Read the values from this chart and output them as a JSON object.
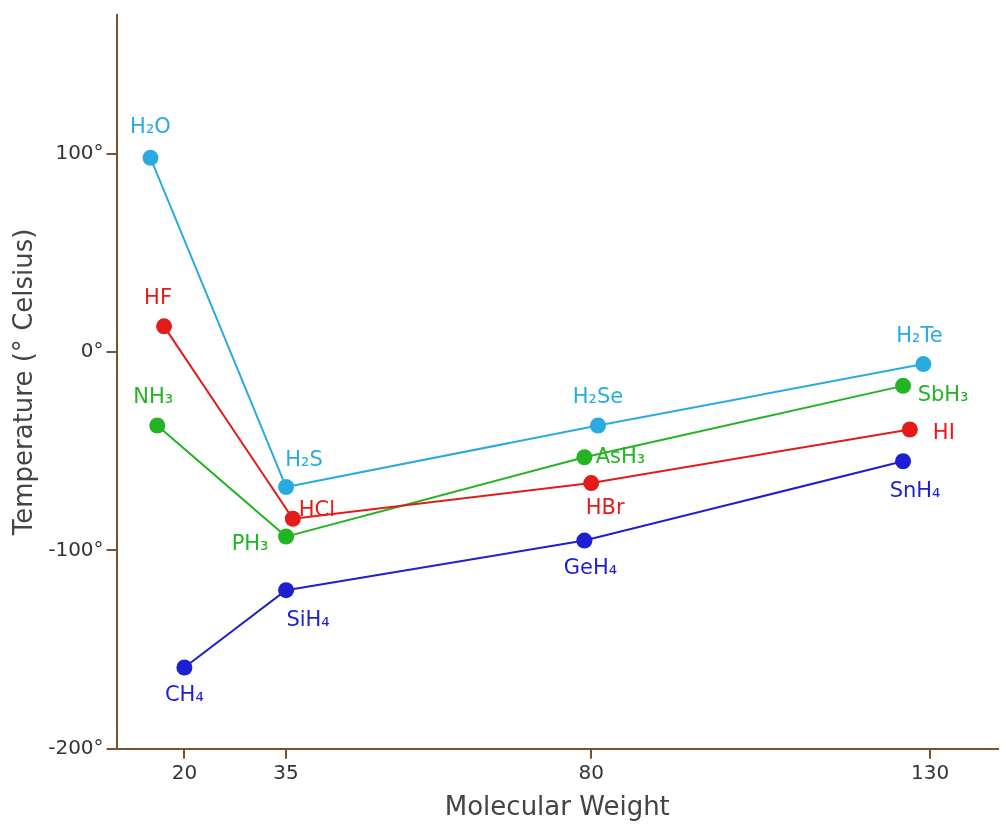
{
  "chart_data": {
    "type": "line",
    "xlabel": "Molecular Weight",
    "ylabel": "Temperature (° Celsius)",
    "xlim": [
      10,
      140
    ],
    "xticks": [
      20,
      35,
      80,
      130
    ],
    "ylim": [
      -200,
      170
    ],
    "yticks": [
      {
        "value": -200,
        "label": "-200°"
      },
      {
        "value": -100,
        "label": "-100°"
      },
      {
        "value": 0,
        "label": "0°"
      },
      {
        "value": 100,
        "label": "100°"
      }
    ],
    "grid": false,
    "legend": false,
    "marker": "circle",
    "line_style": "solid",
    "series": [
      {
        "color": "#29abe2",
        "x": [
          15,
          35,
          81,
          129
        ],
        "values": [
          98,
          -68,
          -37,
          -6
        ]
      },
      {
        "color": "#e31b1b",
        "x": [
          17,
          36,
          80,
          127
        ],
        "values": [
          13,
          -84,
          -66,
          -39
        ]
      },
      {
        "color": "#22b422",
        "x": [
          16,
          35,
          79,
          126
        ],
        "values": [
          -37,
          -93,
          -53,
          -17
        ]
      },
      {
        "color": "#1e1ed2",
        "x": [
          20,
          35,
          79,
          126
        ],
        "values": [
          -159,
          -120,
          -95,
          -55
        ]
      }
    ],
    "annotations": [
      {
        "text": "H₂O",
        "x": 15,
        "y": 98
      },
      {
        "text": "H₂S",
        "x": 35,
        "y": -68
      },
      {
        "text": "H₂Se",
        "x": 81,
        "y": -37
      },
      {
        "text": "H₂Te",
        "x": 129,
        "y": -6
      },
      {
        "text": "HF",
        "x": 17,
        "y": 13
      },
      {
        "text": "HCl",
        "x": 36,
        "y": -84
      },
      {
        "text": "HBr",
        "x": 80,
        "y": -66
      },
      {
        "text": "HI",
        "x": 127,
        "y": -39
      },
      {
        "text": "NH₃",
        "x": 16,
        "y": -37
      },
      {
        "text": "PH₃",
        "x": 35,
        "y": -93
      },
      {
        "text": "AsH₃",
        "x": 79,
        "y": -53
      },
      {
        "text": "SbH₃",
        "x": 126,
        "y": -17
      },
      {
        "text": "CH₄",
        "x": 20,
        "y": -159
      },
      {
        "text": "SiH₄",
        "x": 35,
        "y": -120
      },
      {
        "text": "GeH₄",
        "x": 79,
        "y": -95
      },
      {
        "text": "SnH₄",
        "x": 126,
        "y": -55
      }
    ]
  }
}
